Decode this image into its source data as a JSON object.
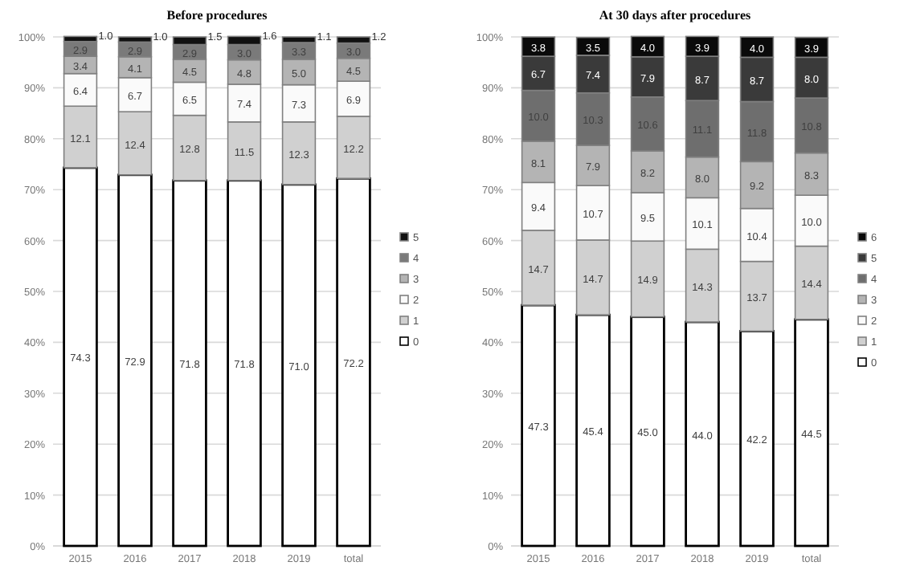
{
  "chart_data": [
    {
      "type": "bar",
      "title": "Before procedures",
      "stacked": true,
      "categories": [
        "2015",
        "2016",
        "2017",
        "2018",
        "2019",
        "total"
      ],
      "ylim": [
        0,
        100
      ],
      "yticks": [
        {
          "value": 0,
          "label": "0%"
        },
        {
          "value": 10,
          "label": "10%"
        },
        {
          "value": 20,
          "label": "20%"
        },
        {
          "value": 30,
          "label": "30%"
        },
        {
          "value": 40,
          "label": "40%"
        },
        {
          "value": 50,
          "label": "50%"
        },
        {
          "value": 60,
          "label": "60%"
        },
        {
          "value": 70,
          "label": "70%"
        },
        {
          "value": 80,
          "label": "80%"
        },
        {
          "value": 90,
          "label": "90%"
        },
        {
          "value": 100,
          "label": "100%"
        }
      ],
      "grid": "y",
      "legend": "right",
      "series": [
        {
          "name": "0",
          "color": "#ffffff",
          "values": [
            74.3,
            72.9,
            71.8,
            71.8,
            71.0,
            72.2
          ],
          "value_labels": [
            "74.3",
            "72.9",
            "71.8",
            "71.8",
            "71.0",
            "72.2"
          ]
        },
        {
          "name": "1",
          "color": "#d0d0d0",
          "values": [
            12.1,
            12.4,
            12.8,
            11.5,
            12.3,
            12.2
          ],
          "value_labels": [
            "12.1",
            "12.4",
            "12.8",
            "11.5",
            "12.3",
            "12.2"
          ]
        },
        {
          "name": "2",
          "color": "#fafafa",
          "values": [
            6.4,
            6.7,
            6.5,
            7.4,
            7.3,
            6.9
          ],
          "value_labels": [
            "6.4",
            "6.7",
            "6.5",
            "7.4",
            "7.3",
            "6.9"
          ]
        },
        {
          "name": "3",
          "color": "#b4b4b4",
          "values": [
            3.4,
            4.1,
            4.5,
            4.8,
            5.0,
            4.5
          ],
          "value_labels": [
            "3.4",
            "4.1",
            "4.5",
            "4.8",
            "5.0",
            "4.5"
          ]
        },
        {
          "name": "4",
          "color": "#7a7a7a",
          "values": [
            2.9,
            2.9,
            2.9,
            3.0,
            3.3,
            3.0
          ],
          "value_labels": [
            "2.9",
            "2.9",
            "2.9",
            "3.0",
            "3.3",
            "3.0"
          ]
        },
        {
          "name": "5",
          "color": "#111111",
          "values": [
            1.0,
            1.0,
            1.5,
            1.6,
            1.1,
            1.2
          ],
          "value_labels": [
            "1.0",
            "1.0",
            "1.5",
            "1.6",
            "1.1",
            "1.2"
          ]
        }
      ]
    },
    {
      "type": "bar",
      "title": "At 30 days after procedures",
      "stacked": true,
      "categories": [
        "2015",
        "2016",
        "2017",
        "2018",
        "2019",
        "total"
      ],
      "ylim": [
        0,
        100
      ],
      "yticks": [
        {
          "value": 0,
          "label": "0%"
        },
        {
          "value": 10,
          "label": "10%"
        },
        {
          "value": 20,
          "label": "20%"
        },
        {
          "value": 30,
          "label": "30%"
        },
        {
          "value": 40,
          "label": "40%"
        },
        {
          "value": 50,
          "label": "50%"
        },
        {
          "value": 60,
          "label": "60%"
        },
        {
          "value": 70,
          "label": "70%"
        },
        {
          "value": 80,
          "label": "80%"
        },
        {
          "value": 90,
          "label": "90%"
        },
        {
          "value": 100,
          "label": "100%"
        }
      ],
      "grid": "y",
      "legend": "right",
      "series": [
        {
          "name": "0",
          "color": "#ffffff",
          "values": [
            47.3,
            45.4,
            45.0,
            44.0,
            42.2,
            44.5
          ],
          "value_labels": [
            "47.3",
            "45.4",
            "45.0",
            "44.0",
            "42.2",
            "44.5"
          ]
        },
        {
          "name": "1",
          "color": "#d0d0d0",
          "values": [
            14.7,
            14.7,
            14.9,
            14.3,
            13.7,
            14.4
          ],
          "value_labels": [
            "14.7",
            "14.7",
            "14.9",
            "14.3",
            "13.7",
            "14.4"
          ]
        },
        {
          "name": "2",
          "color": "#fafafa",
          "values": [
            9.4,
            10.7,
            9.5,
            10.1,
            10.4,
            10.0
          ],
          "value_labels": [
            "9.4",
            "10.7",
            "9.5",
            "10.1",
            "10.4",
            "10.0"
          ]
        },
        {
          "name": "3",
          "color": "#b4b4b4",
          "values": [
            8.1,
            7.9,
            8.2,
            8.0,
            9.2,
            8.3
          ],
          "value_labels": [
            "8.1",
            "7.9",
            "8.2",
            "8.0",
            "9.2",
            "8.3"
          ]
        },
        {
          "name": "4",
          "color": "#6e6e6e",
          "values": [
            10.0,
            10.3,
            10.6,
            11.1,
            11.8,
            10.8
          ],
          "value_labels": [
            "10.0",
            "10.3",
            "10.6",
            "11.1",
            "11.8",
            "10.8"
          ]
        },
        {
          "name": "5",
          "color": "#3a3a3a",
          "values": [
            6.7,
            7.4,
            7.9,
            8.7,
            8.7,
            8.0
          ],
          "value_labels": [
            "6.7",
            "7.4",
            "7.9",
            "8.7",
            "8.7",
            "8.0"
          ]
        },
        {
          "name": "6",
          "color": "#0a0a0a",
          "values": [
            3.8,
            3.5,
            4.0,
            3.9,
            4.0,
            3.9
          ],
          "value_labels": [
            "3.8",
            "3.5",
            "4.0",
            "3.9",
            "4.0",
            "3.9"
          ]
        }
      ]
    }
  ]
}
